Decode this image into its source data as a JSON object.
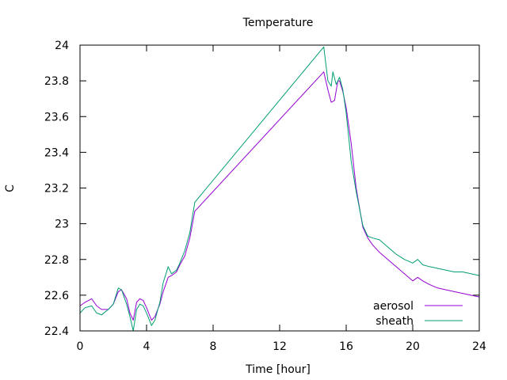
{
  "chart_data": {
    "type": "line",
    "title": "Temperature",
    "xlabel": "Time [hour]",
    "ylabel": "C",
    "xlim": [
      0,
      24
    ],
    "ylim": [
      22.4,
      24
    ],
    "xticks": [
      0,
      4,
      8,
      12,
      16,
      20,
      24
    ],
    "yticks": [
      22.4,
      22.6,
      22.8,
      23,
      23.2,
      23.4,
      23.6,
      23.8,
      24
    ],
    "xtick_labels": [
      "0",
      "4",
      "8",
      "12",
      "16",
      "20",
      "24"
    ],
    "ytick_labels": [
      "22.4",
      "22.6",
      "22.8",
      "23",
      "23.2",
      "23.4",
      "23.6",
      "23.8",
      "24"
    ],
    "grid": false,
    "legend_position": "bottom-right",
    "series": [
      {
        "name": "aerosol",
        "color": "#9400d3",
        "x": [
          0,
          0.3,
          0.7,
          1.0,
          1.3,
          1.7,
          2.0,
          2.3,
          2.5,
          2.8,
          3.0,
          3.2,
          3.4,
          3.6,
          3.8,
          4.0,
          4.3,
          4.5,
          4.8,
          5.0,
          5.3,
          5.5,
          5.8,
          6.0,
          6.3,
          6.6,
          6.9,
          14.65,
          14.9,
          15.1,
          15.3,
          15.5,
          15.6,
          15.8,
          16.0,
          16.3,
          16.6,
          17.0,
          17.3,
          17.6,
          18.0,
          18.5,
          19.0,
          19.5,
          20.0,
          20.3,
          20.6,
          21.0,
          21.5,
          22.0,
          22.5,
          23.0,
          23.5,
          24.0
        ],
        "y": [
          22.54,
          22.56,
          22.58,
          22.54,
          22.52,
          22.52,
          22.55,
          22.62,
          22.63,
          22.58,
          22.5,
          22.46,
          22.56,
          22.58,
          22.57,
          22.53,
          22.46,
          22.48,
          22.55,
          22.62,
          22.7,
          22.71,
          22.73,
          22.77,
          22.82,
          22.92,
          23.07,
          23.85,
          23.75,
          23.68,
          23.69,
          23.8,
          23.8,
          23.74,
          23.65,
          23.45,
          23.2,
          22.98,
          22.92,
          22.88,
          22.84,
          22.8,
          22.76,
          22.72,
          22.68,
          22.7,
          22.68,
          22.66,
          22.64,
          22.63,
          22.62,
          22.61,
          22.6,
          22.59
        ]
      },
      {
        "name": "sheath",
        "color": "#009e73",
        "x": [
          0,
          0.3,
          0.7,
          1.0,
          1.3,
          1.7,
          2.0,
          2.3,
          2.5,
          2.8,
          3.0,
          3.2,
          3.4,
          3.6,
          3.8,
          4.0,
          4.3,
          4.5,
          4.8,
          5.0,
          5.3,
          5.5,
          5.8,
          6.0,
          6.3,
          6.6,
          6.9,
          14.65,
          14.9,
          15.1,
          15.2,
          15.4,
          15.6,
          15.8,
          16.0,
          16.3,
          16.6,
          17.0,
          17.3,
          17.6,
          18.0,
          18.5,
          19.0,
          19.5,
          20.0,
          20.3,
          20.6,
          21.0,
          21.5,
          22.0,
          22.5,
          23.0,
          23.5,
          24.0
        ],
        "y": [
          22.5,
          22.53,
          22.54,
          22.5,
          22.49,
          22.52,
          22.55,
          22.64,
          22.63,
          22.55,
          22.48,
          22.4,
          22.52,
          22.55,
          22.54,
          22.5,
          22.43,
          22.46,
          22.56,
          22.67,
          22.76,
          22.72,
          22.74,
          22.78,
          22.85,
          22.95,
          23.12,
          23.99,
          23.8,
          23.77,
          23.85,
          23.78,
          23.82,
          23.75,
          23.62,
          23.35,
          23.18,
          22.99,
          22.93,
          22.92,
          22.91,
          22.87,
          22.83,
          22.8,
          22.78,
          22.8,
          22.77,
          22.76,
          22.75,
          22.74,
          22.73,
          22.73,
          22.72,
          22.71
        ]
      }
    ]
  }
}
